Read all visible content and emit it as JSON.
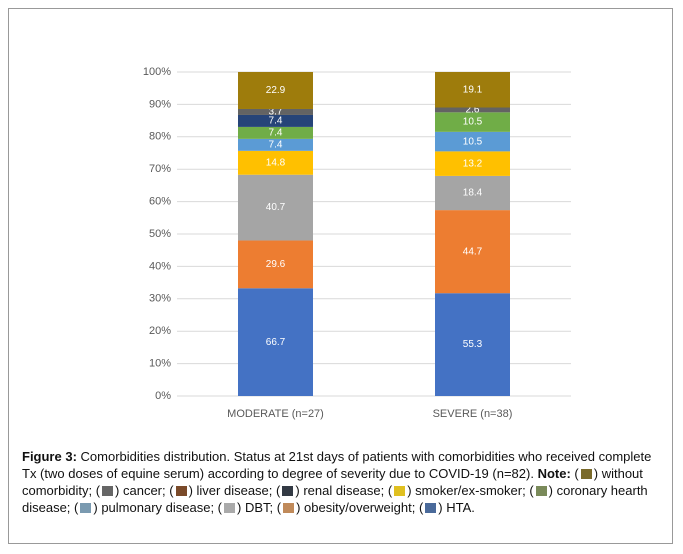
{
  "chart_data": {
    "type": "bar",
    "stack": "percent",
    "categories": [
      "MODERATE (n=27)",
      "SEVERE (n=38)"
    ],
    "series": [
      {
        "color": "#4472c4",
        "values": [
          66.7,
          55.3
        ]
      },
      {
        "color": "#ed7d31",
        "values": [
          29.6,
          44.7
        ]
      },
      {
        "color": "#a5a5a5",
        "values": [
          40.7,
          18.4
        ]
      },
      {
        "color": "#ffc000",
        "values": [
          14.8,
          13.2
        ]
      },
      {
        "color": "#5b9bd5",
        "values": [
          7.4,
          10.5
        ]
      },
      {
        "color": "#70ad47",
        "values": [
          7.4,
          10.5
        ]
      },
      {
        "color": "#264478",
        "values": [
          7.4,
          null
        ]
      },
      {
        "color": "#636363",
        "values": [
          3.7,
          2.6
        ]
      },
      {
        "color": "#9e7c0c",
        "values": [
          22.9,
          19.1
        ]
      }
    ],
    "ylim": [
      0,
      100
    ],
    "yticks": [
      {
        "value": 0,
        "label": "0%"
      },
      {
        "value": 10,
        "label": "10%"
      },
      {
        "value": 20,
        "label": "20%"
      },
      {
        "value": 30,
        "label": "30%"
      },
      {
        "value": 40,
        "label": "40%"
      },
      {
        "value": 50,
        "label": "50%"
      },
      {
        "value": 60,
        "label": "60%"
      },
      {
        "value": 70,
        "label": "70%"
      },
      {
        "value": 80,
        "label": "80%"
      },
      {
        "value": 90,
        "label": "90%"
      },
      {
        "value": 100,
        "label": "100%"
      }
    ],
    "grid": true
  },
  "caption": {
    "figure": "Figure 3:",
    "text": "Comorbidities distribution.  Status at 21st days of patients with comorbidities who received complete Tx (two doses of equine serum) according to degree of severity due to COVID-19 (n=82).",
    "note": "Note:",
    "items": [
      {
        "color": "#7a6a2a",
        "text": "without comorbidity;"
      },
      {
        "color": "#666666",
        "text": "cancer;"
      },
      {
        "color": "#7a4a2a",
        "text": "liver disease;"
      },
      {
        "color": "#333a44",
        "text": "renal disease;"
      },
      {
        "color": "#e0c020",
        "text": "smoker/ex-smoker;"
      },
      {
        "color": "#7a8a5a",
        "text": "coronary hearth disease;"
      },
      {
        "color": "#7a9ab0",
        "text": "pulmonary disease;"
      },
      {
        "color": "#aaaaaa",
        "text": "DBT;"
      },
      {
        "color": "#c08a5a",
        "text": "obesity/overweight;"
      },
      {
        "color": "#4a6a9a",
        "text": "HTA."
      }
    ]
  }
}
